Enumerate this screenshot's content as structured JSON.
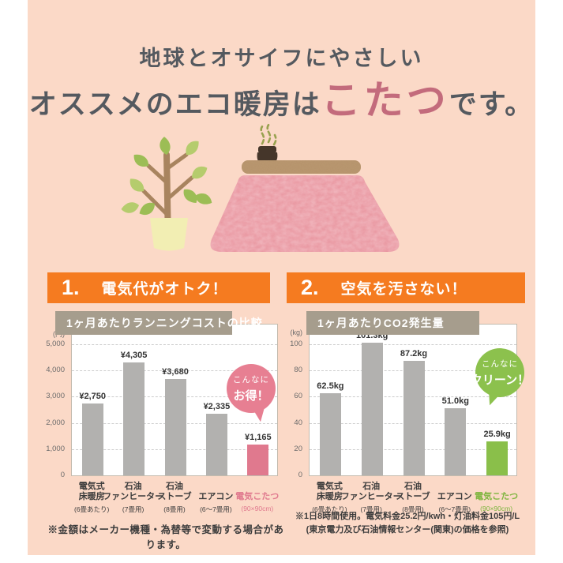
{
  "poster": {
    "bg_color": "#fbd9c7",
    "accent_pink": "#c36b7c",
    "accent_orange": "#f57b20",
    "title": {
      "line1": "地球とオサイフにやさしい",
      "line2_prefix": "オススメのエコ暖房は",
      "line2_highlight": "こたつ",
      "line2_suffix": "です。"
    },
    "sections": [
      {
        "number": "1.",
        "label": "電気代がオトク！"
      },
      {
        "number": "2.",
        "label": "空気を汚さない！"
      }
    ],
    "illustration": {
      "items": [
        "potted-plant",
        "kotatsu-blanket",
        "kotatsu-tabletop",
        "teapot",
        "steam"
      ]
    },
    "footnotes": {
      "left": "※金額はメーカー機種・為替等で変動する場合があります。",
      "right_line1": "※1日8時間使用。電気料金25.2円/kwh・灯油料金105円/L",
      "right_line2": "(東京電力及び石油情報センター(関東)の価格を参照)"
    }
  },
  "chart_data": [
    {
      "type": "bar",
      "title": "1ヶ月あたりランニングコストの比較",
      "unit": "(円)",
      "ylim": [
        0,
        5000
      ],
      "yticks": [
        5000,
        4000,
        3000,
        2000,
        1000,
        0
      ],
      "ytick_labels": [
        "5,000",
        "4,000",
        "3,000",
        "2,000",
        "1,000",
        "0"
      ],
      "grid": "dashed",
      "legend": "none",
      "categories": [
        "電気式\n床暖房",
        "石油\nファンヒーター",
        "石油\nストーブ",
        "エアコン",
        "電気こたつ"
      ],
      "category_subs": [
        "(6畳あたり)",
        "(7畳用)",
        "(8畳用)",
        "(6〜7畳用)",
        "(90×90cm)"
      ],
      "values": [
        2750,
        4305,
        3680,
        2335,
        1165
      ],
      "value_labels": [
        "¥2,750",
        "¥4,305",
        "¥3,680",
        "¥2,335",
        "¥1,165"
      ],
      "bar_colors": [
        "#b2b1af",
        "#b2b1af",
        "#b2b1af",
        "#b2b1af",
        "#e0798e"
      ],
      "highlight_index": 4,
      "highlight_label_color": "#e0798e",
      "badge": {
        "line1": "こんなに",
        "line2": "お得！",
        "color": "#e77f92"
      }
    },
    {
      "type": "bar",
      "title": "1ヶ月あたりCO2発生量",
      "unit": "(kg)",
      "ylim": [
        0,
        100
      ],
      "yticks": [
        100,
        80,
        60,
        40,
        20,
        0
      ],
      "ytick_labels": [
        "100",
        "80",
        "60",
        "40",
        "20",
        "0"
      ],
      "grid": "dashed",
      "legend": "none",
      "categories": [
        "電気式\n床暖房",
        "石油\nファンヒーター",
        "石油\nストーブ",
        "エアコン",
        "電気こたつ"
      ],
      "category_subs": [
        "(6畳あたり)",
        "(7畳用)",
        "(8畳用)",
        "(6〜7畳用)",
        "(90×90cm)"
      ],
      "values": [
        62.5,
        101.3,
        87.2,
        51.0,
        25.9
      ],
      "value_labels": [
        "62.5kg",
        "101.3kg",
        "87.2kg",
        "51.0kg",
        "25.9kg"
      ],
      "bar_colors": [
        "#b2b1af",
        "#b2b1af",
        "#b2b1af",
        "#b2b1af",
        "#8abf4a"
      ],
      "highlight_index": 4,
      "highlight_label_color": "#7eb53e",
      "badge": {
        "line1": "こんなに",
        "line2": "クリーン！",
        "color": "#8cc14d"
      }
    }
  ]
}
